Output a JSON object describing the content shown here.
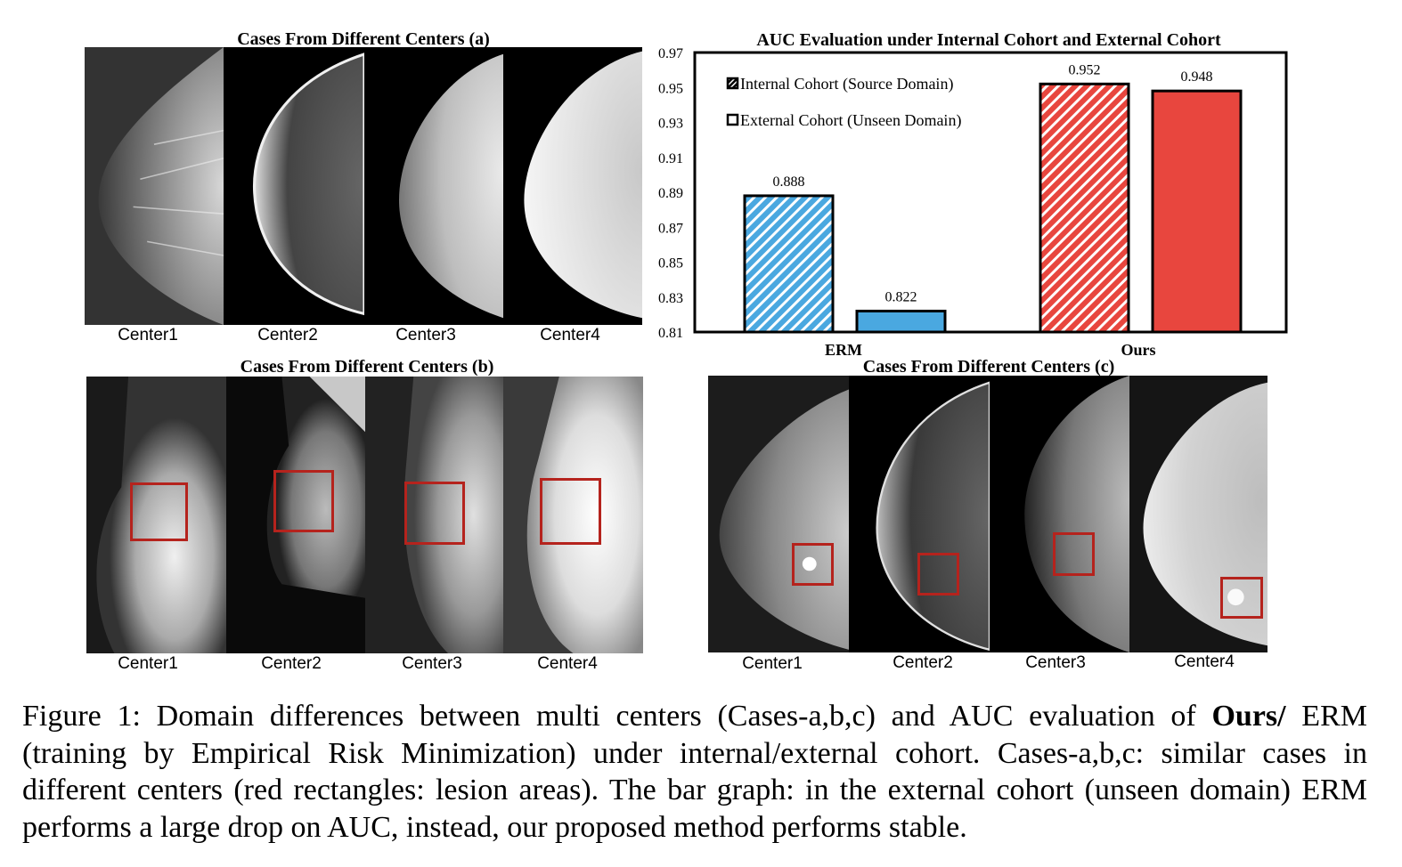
{
  "panel_a": {
    "title": "Cases From Different Centers (a)",
    "labels": [
      "Center1",
      "Center2",
      "Center3",
      "Center4"
    ]
  },
  "panel_b": {
    "title": "Cases From Different Centers (b)",
    "labels": [
      "Center1",
      "Center2",
      "Center3",
      "Center4"
    ]
  },
  "panel_c": {
    "title": "Cases From Different Centers (c)",
    "labels": [
      "Center1",
      "Center2",
      "Center3",
      "Center4"
    ]
  },
  "lesion_color": "#b5231d",
  "chart_data": {
    "type": "bar",
    "title": "AUC Evaluation under Internal Cohort and External Cohort",
    "categories": [
      "ERM",
      "Ours"
    ],
    "ylim": [
      0.81,
      0.97
    ],
    "yticks": [
      "0.97",
      "0.95",
      "0.93",
      "0.91",
      "0.89",
      "0.87",
      "0.85",
      "0.83",
      "0.81"
    ],
    "legend_position": "top-left",
    "series": [
      {
        "name": "Internal Cohort (Source Domain)",
        "values": [
          0.888,
          0.952
        ],
        "labels": [
          "0.888",
          "0.952"
        ],
        "pattern": "hatched"
      },
      {
        "name": "External Cohort (Unseen Domain)",
        "values": [
          0.822,
          0.948
        ],
        "labels": [
          "0.822",
          "0.948"
        ],
        "pattern": "solid"
      }
    ],
    "colors": {
      "ERM": "#4aa8e0",
      "Ours": "#e8463e"
    }
  },
  "caption": {
    "prefix": "Figure 1: Domain differences between multi centers (Cases-a,b,c) and AUC evaluation of ",
    "bold": "Ours/",
    "suffix": " ERM (training by Empirical Risk Minimization) under internal/external cohort. Cases-a,b,c: similar cases in different centers (red rectangles: lesion areas). The bar graph: in the external cohort (unseen domain) ERM performs a large drop on AUC, instead, our proposed method performs stable."
  }
}
